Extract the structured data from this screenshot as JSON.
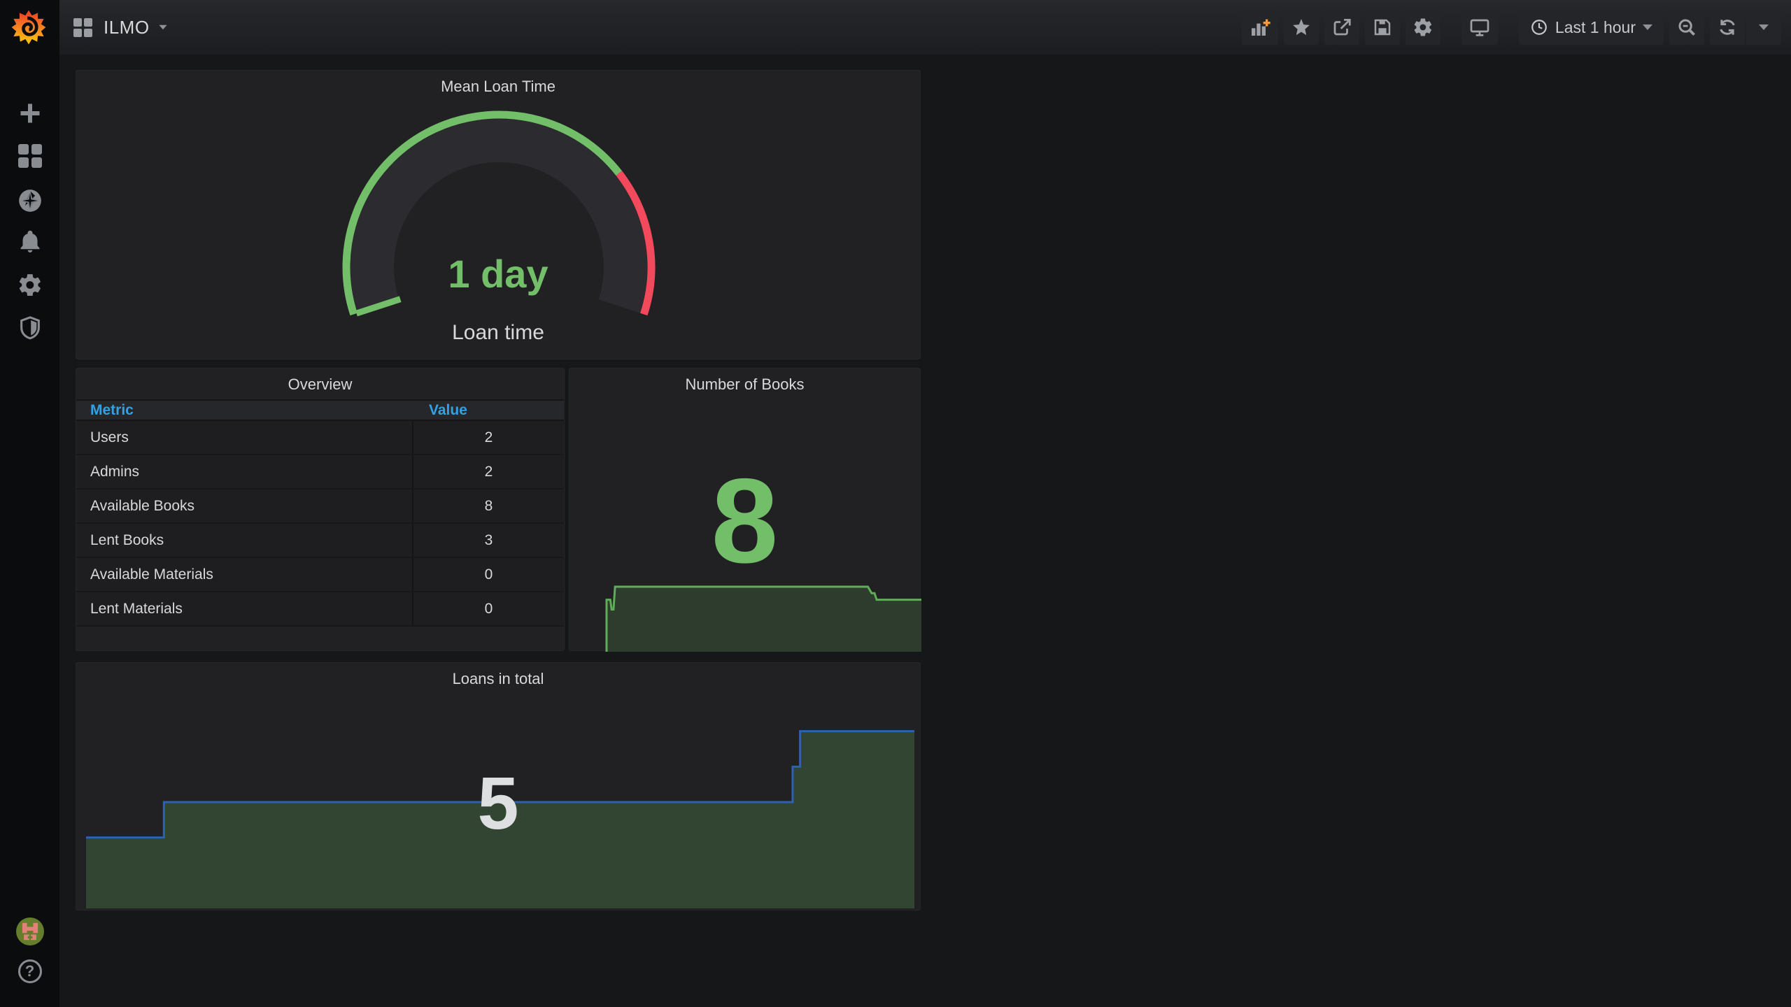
{
  "navbar": {
    "title": "ILMO",
    "time_range": "Last 1 hour",
    "toolbar_icons": [
      "add-panel-icon",
      "star-icon",
      "share-icon",
      "save-icon",
      "settings-icon",
      "tv-mode-icon",
      "clock-icon",
      "zoom-out-icon",
      "refresh-icon",
      "refresh-interval-caret-icon"
    ]
  },
  "sidebar": {
    "icons": [
      "grafana-logo",
      "create-plus-icon",
      "dashboards-grid-icon",
      "explore-compass-icon",
      "alerting-bell-icon",
      "configuration-gear-icon",
      "server-admin-shield-icon",
      "user-avatar",
      "help-icon"
    ]
  },
  "panels": {
    "gauge": {
      "title": "Mean Loan Time",
      "value": "1 day",
      "label": "Loan time"
    },
    "overview": {
      "title": "Overview",
      "columns": [
        "Metric",
        "Value"
      ],
      "rows": [
        [
          "Users",
          "2"
        ],
        [
          "Admins",
          "2"
        ],
        [
          "Available Books",
          "8"
        ],
        [
          "Lent Books",
          "3"
        ],
        [
          "Available Materials",
          "0"
        ],
        [
          "Lent Materials",
          "0"
        ]
      ]
    },
    "books": {
      "title": "Number of Books",
      "value": "8"
    },
    "loans": {
      "title": "Loans in total",
      "value": "5"
    }
  },
  "chart_data": [
    {
      "type": "area",
      "title": "Number of Books",
      "current_value": 8,
      "ylim": [
        0,
        10
      ],
      "x_axis": "time (Last 1 hour)",
      "grid": false,
      "legend": false,
      "line_color": "#5fae57",
      "fill_color": "#2d3c2d",
      "series": [
        {
          "name": "books",
          "points": [
            [
              0,
              0
            ],
            [
              0,
              8
            ],
            [
              0.012,
              8
            ],
            [
              0.016,
              6.5
            ],
            [
              0.022,
              6.5
            ],
            [
              0.027,
              10
            ],
            [
              0.83,
              10
            ],
            [
              0.842,
              9
            ],
            [
              0.851,
              9
            ],
            [
              0.858,
              8
            ],
            [
              1,
              8
            ]
          ]
        }
      ]
    },
    {
      "type": "area",
      "title": "Loans in total",
      "current_value": 5,
      "ylim": [
        0,
        6
      ],
      "x_axis": "time (Last 1 hour)",
      "grid": false,
      "legend": false,
      "line_color": "#2e62b1",
      "fill_color": "#324432",
      "series": [
        {
          "name": "loans",
          "points": [
            [
              0,
              2
            ],
            [
              0.094,
              2
            ],
            [
              0.094,
              3
            ],
            [
              0.853,
              3
            ],
            [
              0.853,
              4
            ],
            [
              0.862,
              4
            ],
            [
              0.862,
              5
            ],
            [
              1,
              5
            ]
          ]
        }
      ]
    }
  ],
  "colors": {
    "green": "#73BF69",
    "red": "#F2495C",
    "table_header_blue": "#33A2E5",
    "loans_line_blue": "#2e62b1",
    "orange_plus": "#FF9830",
    "panel_bg": "#212124",
    "page_bg": "#161719",
    "sidebar_bg": "#0b0c0e",
    "text": "#d8d9da"
  }
}
